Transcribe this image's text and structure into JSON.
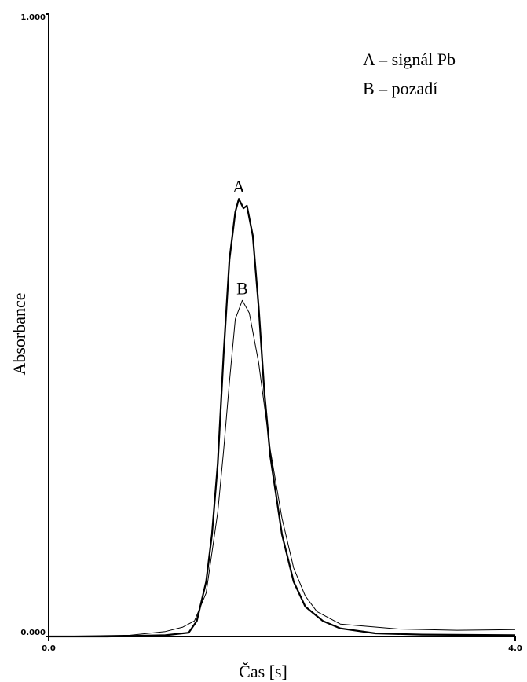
{
  "chart_data": {
    "type": "line",
    "xlabel": "Čas [s]",
    "ylabel": "Absorbance",
    "xlim": [
      0,
      4
    ],
    "ylim": [
      0,
      1
    ],
    "xticks": [
      {
        "value": 0,
        "label": "0.0"
      },
      {
        "value": 4,
        "label": "4.0"
      }
    ],
    "yticks": [
      {
        "value": 0,
        "label": "0.000"
      },
      {
        "value": 1,
        "label": "1.000"
      }
    ],
    "annotations": [
      "A",
      "B"
    ],
    "series": [
      {
        "name": "A – signál Pb",
        "color": "#000000",
        "x": [
          0,
          0.5,
          1.0,
          1.2,
          1.27,
          1.35,
          1.4,
          1.45,
          1.5,
          1.55,
          1.6,
          1.63,
          1.67,
          1.7,
          1.75,
          1.8,
          1.85,
          1.9,
          2.0,
          2.1,
          2.2,
          2.35,
          2.5,
          2.8,
          3.2,
          4.0
        ],
        "values": [
          0,
          0,
          0.002,
          0.006,
          0.025,
          0.088,
          0.164,
          0.278,
          0.455,
          0.606,
          0.682,
          0.703,
          0.688,
          0.692,
          0.644,
          0.53,
          0.391,
          0.29,
          0.164,
          0.088,
          0.048,
          0.025,
          0.013,
          0.005,
          0.003,
          0.002
        ]
      },
      {
        "name": "B – pozadí",
        "color": "#000000",
        "x": [
          0,
          0.7,
          1.0,
          1.15,
          1.25,
          1.35,
          1.45,
          1.5,
          1.55,
          1.6,
          1.66,
          1.72,
          1.8,
          1.9,
          2.0,
          2.1,
          2.2,
          2.3,
          2.5,
          3.0,
          3.5,
          4.0
        ],
        "values": [
          0,
          0.002,
          0.008,
          0.015,
          0.025,
          0.07,
          0.2,
          0.3,
          0.41,
          0.51,
          0.54,
          0.52,
          0.44,
          0.3,
          0.19,
          0.11,
          0.065,
          0.04,
          0.02,
          0.012,
          0.01,
          0.011
        ]
      }
    ]
  }
}
